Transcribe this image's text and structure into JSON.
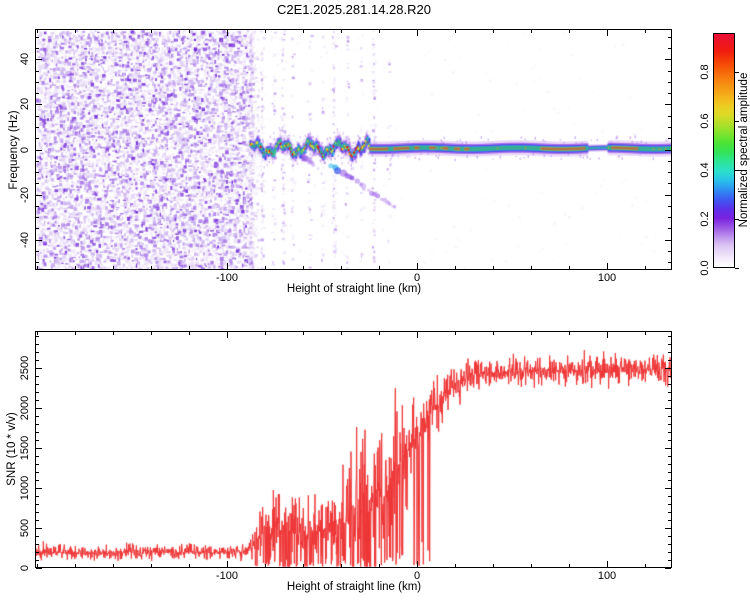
{
  "title": "C2E1.2025.281.14.28.R20",
  "colorbar": {
    "label": "Normalized spectral amplitude",
    "tick_labels": [
      "0.0",
      "0.2",
      "0.4",
      "0.6",
      "0.8"
    ],
    "tick_values": [
      0,
      0.2,
      0.4,
      0.6,
      0.8
    ],
    "max_value": 0.96,
    "gradient_stops": [
      [
        0.0,
        "#ffffff"
      ],
      [
        0.04,
        "#f3eafa"
      ],
      [
        0.09,
        "#ddc7f4"
      ],
      [
        0.13,
        "#bd92ec"
      ],
      [
        0.17,
        "#9a56e4"
      ],
      [
        0.21,
        "#7a22e0"
      ],
      [
        0.25,
        "#5c31ea"
      ],
      [
        0.29,
        "#3d5bf2"
      ],
      [
        0.33,
        "#2f8df2"
      ],
      [
        0.37,
        "#29c0ea"
      ],
      [
        0.41,
        "#2bdfcc"
      ],
      [
        0.45,
        "#2de49a"
      ],
      [
        0.49,
        "#31e35c"
      ],
      [
        0.53,
        "#49e336"
      ],
      [
        0.57,
        "#7ce32e"
      ],
      [
        0.61,
        "#addf2a"
      ],
      [
        0.65,
        "#d8dc26"
      ],
      [
        0.69,
        "#edcd21"
      ],
      [
        0.73,
        "#f4b31b"
      ],
      [
        0.77,
        "#f69814"
      ],
      [
        0.81,
        "#f77c0e"
      ],
      [
        0.85,
        "#f75c08"
      ],
      [
        0.89,
        "#f43a07"
      ],
      [
        0.93,
        "#f01a10"
      ],
      [
        1.0,
        "#eb0f38"
      ]
    ]
  },
  "chart_data": [
    {
      "type": "heatmap",
      "title": "C2E1.2025.281.14.28.R20",
      "xlabel": "Height of straight line (km)",
      "ylabel": "Frequency (Hz)",
      "x_range": [
        -201,
        134.3
      ],
      "y_range": [
        -53.5,
        53.5
      ],
      "x_major_ticks": [
        -100,
        0,
        100
      ],
      "x_minor_step": 20,
      "y_major_ticks": [
        -40,
        -20,
        0,
        20,
        40
      ],
      "y_minor_step": 5,
      "legend_label": "Normalized spectral amplitude",
      "noise_region": {
        "x_end_km": -88,
        "description": "dense purple speckle noise filling full frequency range left of -88 km"
      },
      "noise_palette": [
        "#f1e8fa",
        "#e2d2f5",
        "#c9aef0",
        "#a878e8",
        "#8846e0",
        "#6b22d6"
      ],
      "noise_weights": [
        0.22,
        0.23,
        0.21,
        0.16,
        0.11,
        0.07
      ],
      "gap_columns_km": [
        [
          -82,
          0.5
        ],
        [
          -76,
          0.25
        ],
        [
          -71,
          0.45
        ],
        [
          -66,
          0.2
        ],
        [
          -57,
          0.18
        ],
        [
          -50,
          0.15
        ],
        [
          -44,
          0.45
        ],
        [
          -37,
          0.18
        ],
        [
          -30,
          0.12
        ],
        [
          -23,
          0.4
        ],
        [
          -15,
          0.1
        ]
      ],
      "signal_band": {
        "start_km": -88,
        "center_hz": 0.5,
        "wiggly_until_km": -25,
        "wiggle_amp_hz": 3,
        "pinch_km": [
          90,
          101
        ],
        "red_core_segments_km": [
          [
            -38,
            -27
          ],
          [
            -26,
            -15
          ],
          [
            -12,
            -4
          ],
          [
            -1,
            1.5
          ],
          [
            7,
            10
          ],
          [
            14,
            17
          ],
          [
            20,
            23
          ],
          [
            25,
            28
          ],
          [
            66,
            89
          ],
          [
            103,
            117
          ]
        ]
      },
      "band_colors": {
        "halo": "#d4b2f2",
        "purple": "#9146e4",
        "blue": "#3f3bee",
        "cyan": "#27b4ec",
        "green": "#2fd84b",
        "yellow": "#e8e320",
        "red": "#f21212",
        "orange": "#ff9b00",
        "fringe": "#a467e8"
      },
      "descending_streaks": [
        {
          "from": [
            -45,
            -7
          ],
          "to": [
            -12,
            -26
          ],
          "head_colors": [
            "#28b8e8",
            "#3353ee"
          ]
        },
        {
          "from": [
            -61,
            -2.5
          ],
          "to": [
            -52,
            -8
          ]
        }
      ]
    },
    {
      "type": "line",
      "xlabel": "Height of straight line (km)",
      "ylabel": "SNR (10 * v/v)",
      "x_range": [
        -201,
        134.3
      ],
      "y_range": [
        0,
        2960
      ],
      "x_major_ticks": [
        -100,
        0,
        100
      ],
      "x_minor_step": 20,
      "y_major_ticks": [
        0,
        500,
        1000,
        1500,
        2000,
        2500
      ],
      "y_minor_step": 100,
      "color": "#ee3536",
      "envelope_km_mean_spread": [
        [
          -202,
          180,
          240
        ],
        [
          -96,
          185,
          250
        ],
        [
          -88,
          220,
          320
        ],
        [
          -81,
          420,
          950
        ],
        [
          -74,
          500,
          1750
        ],
        [
          -68,
          420,
          1300
        ],
        [
          -58,
          420,
          1000
        ],
        [
          -48,
          470,
          1150
        ],
        [
          -39,
          560,
          2300
        ],
        [
          -31,
          680,
          2950
        ],
        [
          -24,
          760,
          2700
        ],
        [
          -16,
          1050,
          2400
        ],
        [
          -8,
          1350,
          2100
        ],
        [
          0,
          1650,
          1600
        ],
        [
          8,
          1950,
          1150
        ],
        [
          18,
          2250,
          800
        ],
        [
          28,
          2420,
          560
        ],
        [
          60,
          2480,
          520
        ],
        [
          135,
          2480,
          520
        ]
      ],
      "fade_dip_range_km": [
        -86,
        8
      ]
    }
  ]
}
